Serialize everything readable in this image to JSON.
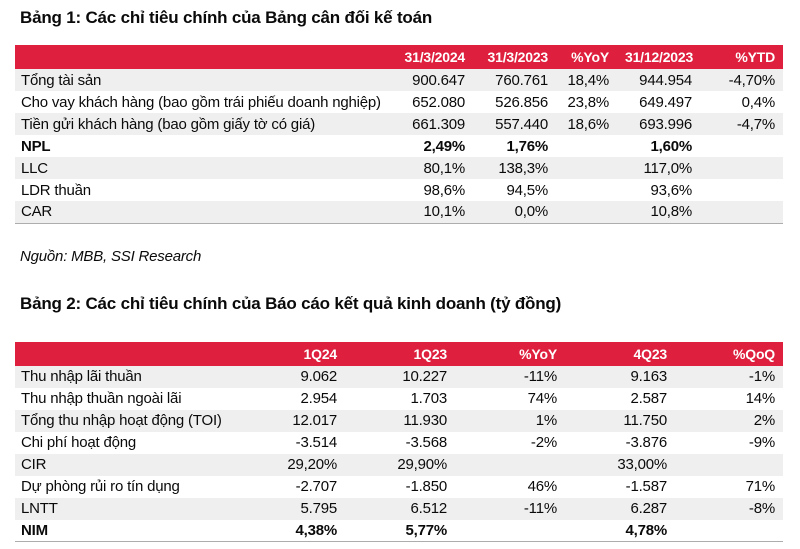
{
  "colors": {
    "header_red": "#DE1F3D",
    "row_stripe": "#EFEFEF",
    "bottom_rule": "#ADADAD",
    "text": "#0A0A0A"
  },
  "table1": {
    "title": "Bảng 1: Các chỉ tiêu chính của Bảng cân đối kế toán",
    "headers": [
      "",
      "31/3/2024",
      "31/3/2023",
      "%YoY",
      "31/12/2023",
      "%YTD"
    ],
    "rows": [
      {
        "bold": false,
        "cells": [
          "Tổng tài sản",
          "900.647",
          "760.761",
          "18,4%",
          "944.954",
          "-4,70%"
        ]
      },
      {
        "bold": false,
        "cells": [
          "Cho vay khách hàng (bao gồm trái phiếu doanh nghiệp)",
          "652.080",
          "526.856",
          "23,8%",
          "649.497",
          "0,4%"
        ]
      },
      {
        "bold": false,
        "cells": [
          "Tiền gửi khách hàng (bao gồm giấy tờ có giá)",
          "661.309",
          "557.440",
          "18,6%",
          "693.996",
          "-4,7%"
        ]
      },
      {
        "bold": true,
        "cells": [
          "NPL",
          "2,49%",
          "1,76%",
          "",
          "1,60%",
          ""
        ]
      },
      {
        "bold": false,
        "cells": [
          "LLC",
          "80,1%",
          "138,3%",
          "",
          "117,0%",
          ""
        ]
      },
      {
        "bold": false,
        "cells": [
          "LDR thuần",
          "98,6%",
          "94,5%",
          "",
          "93,6%",
          ""
        ]
      },
      {
        "bold": false,
        "cells": [
          "CAR",
          "10,1%",
          "0,0%",
          "",
          "10,8%",
          ""
        ]
      }
    ]
  },
  "source_note": "Nguồn: MBB, SSI Research",
  "table2": {
    "title": "Bảng 2: Các chỉ tiêu chính của Báo cáo kết quả kinh doanh (tỷ đồng)",
    "headers": [
      "",
      "1Q24",
      "1Q23",
      "%YoY",
      "4Q23",
      "%QoQ"
    ],
    "rows": [
      {
        "bold": false,
        "cells": [
          "Thu nhập lãi thuần",
          "9.062",
          "10.227",
          "-11%",
          "9.163",
          "-1%"
        ]
      },
      {
        "bold": false,
        "cells": [
          "Thu nhập thuần ngoài lãi",
          "2.954",
          "1.703",
          "74%",
          "2.587",
          "14%"
        ]
      },
      {
        "bold": false,
        "cells": [
          "Tổng thu nhập hoạt động (TOI)",
          "12.017",
          "11.930",
          "1%",
          "11.750",
          "2%"
        ]
      },
      {
        "bold": false,
        "cells": [
          "Chi phí hoạt động",
          "-3.514",
          "-3.568",
          "-2%",
          "-3.876",
          "-9%"
        ]
      },
      {
        "bold": false,
        "cells": [
          "CIR",
          "29,20%",
          "29,90%",
          "",
          "33,00%",
          ""
        ]
      },
      {
        "bold": false,
        "cells": [
          "Dự phòng rủi ro tín dụng",
          "-2.707",
          "-1.850",
          "46%",
          "-1.587",
          "71%"
        ]
      },
      {
        "bold": false,
        "cells": [
          "LNTT",
          "5.795",
          "6.512",
          "-11%",
          "6.287",
          "-8%"
        ]
      },
      {
        "bold": true,
        "cells": [
          "NIM",
          "4,38%",
          "5,77%",
          "",
          "4,78%",
          ""
        ]
      }
    ]
  }
}
